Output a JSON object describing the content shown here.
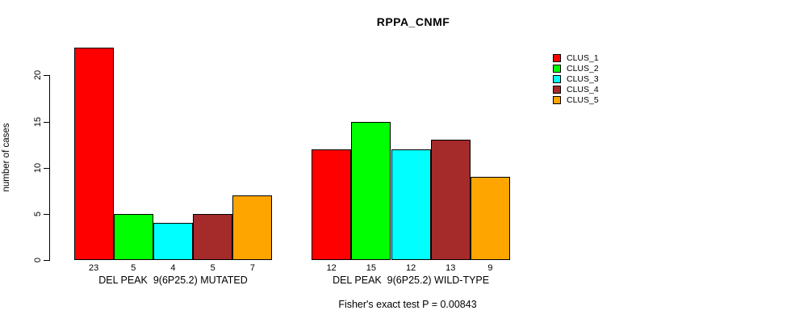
{
  "figure": {
    "title": "RPPA_CNMF",
    "y_axis_label": "number of cases",
    "annotation": "Fisher's exact test P = 0.00843"
  },
  "legend": {
    "position": "right",
    "entries": [
      {
        "label": "CLUS_1",
        "color": "#FF0000"
      },
      {
        "label": "CLUS_2",
        "color": "#00FF00"
      },
      {
        "label": "CLUS_3",
        "color": "#00FFFF"
      },
      {
        "label": "CLUS_4",
        "color": "#A52A2A"
      },
      {
        "label": "CLUS_5",
        "color": "#FFA500"
      }
    ]
  },
  "chart_data": {
    "type": "bar",
    "title": "RPPA_CNMF",
    "xlabel": "",
    "ylabel": "number of cases",
    "y_ticks": [
      0,
      5,
      10,
      15,
      20
    ],
    "ylim": [
      0,
      23
    ],
    "grid": false,
    "legend_position": "right",
    "categories": [
      "DEL PEAK  9(6P25.2) MUTATED",
      "DEL PEAK  9(6P25.2) WILD-TYPE"
    ],
    "series": [
      {
        "name": "CLUS_1",
        "color": "#FF0000",
        "values": [
          23,
          12
        ]
      },
      {
        "name": "CLUS_2",
        "color": "#00FF00",
        "values": [
          5,
          15
        ]
      },
      {
        "name": "CLUS_3",
        "color": "#00FFFF",
        "values": [
          4,
          12
        ]
      },
      {
        "name": "CLUS_4",
        "color": "#A52A2A",
        "values": [
          5,
          13
        ]
      },
      {
        "name": "CLUS_5",
        "color": "#FFA500",
        "values": [
          7,
          9
        ]
      }
    ],
    "bar_value_labels": [
      [
        23,
        5,
        4,
        5,
        7
      ],
      [
        12,
        15,
        12,
        13,
        9
      ]
    ],
    "annotation": "Fisher's exact test P = 0.00843"
  }
}
